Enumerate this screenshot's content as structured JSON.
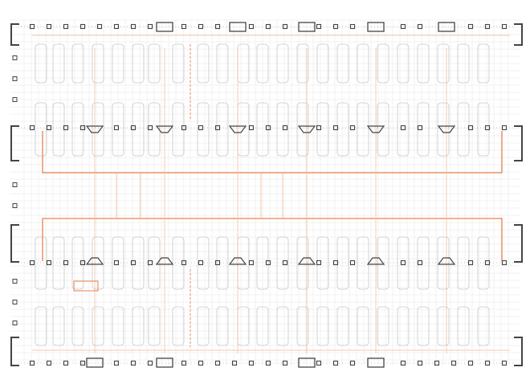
{
  "drawing": {
    "colors": {
      "background": "#ffffff",
      "grid": "#e6e6e6",
      "wall": "#444444",
      "stall": "#c8c8c8",
      "route": "#e8834e",
      "route_light": "#f3b894",
      "label": "#8a8a8a"
    },
    "labels": [
      "",
      "",
      "",
      "",
      "",
      "",
      "",
      "",
      "",
      "",
      "",
      "",
      "",
      "",
      "",
      "",
      ""
    ]
  }
}
